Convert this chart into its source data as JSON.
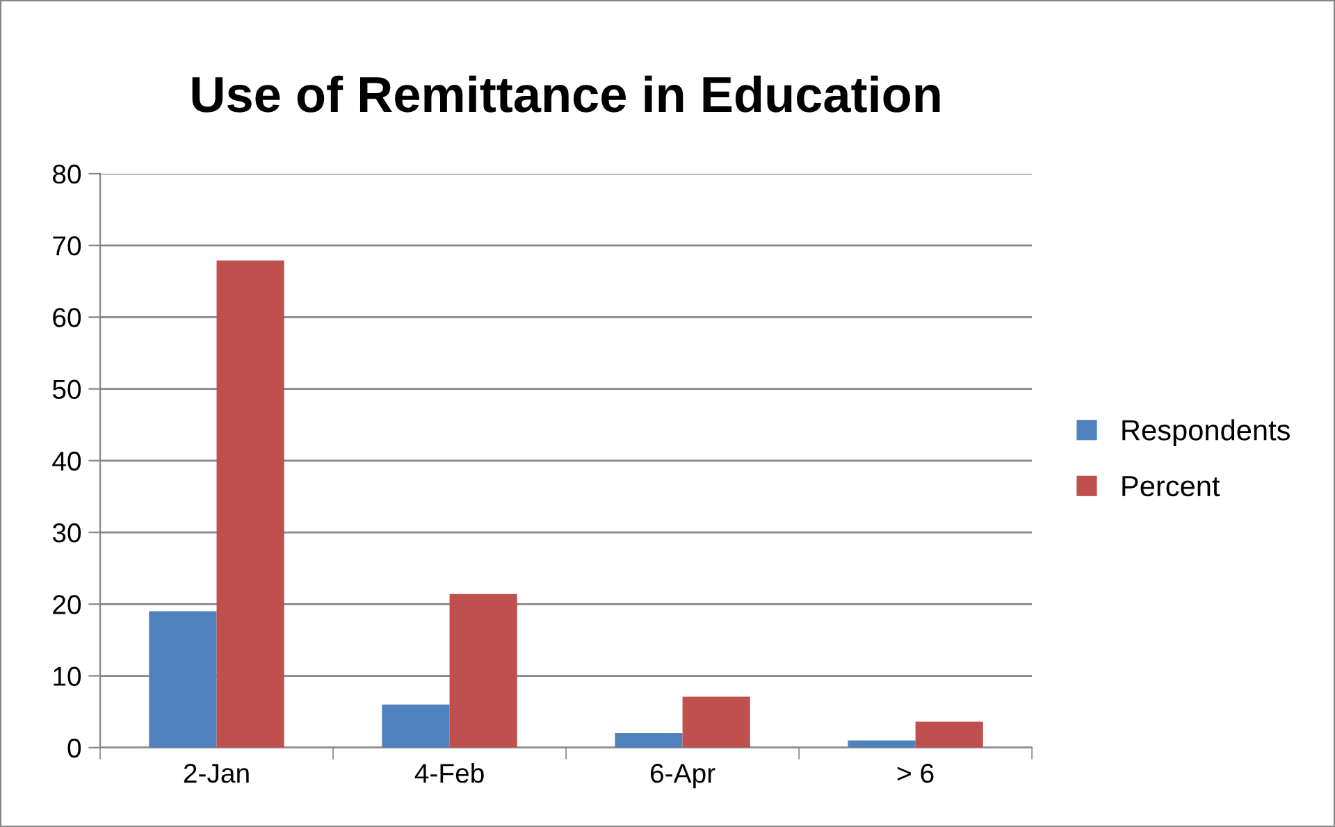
{
  "chart_data": {
    "type": "bar",
    "title": "Use of Remittance in Education",
    "categories": [
      "2-Jan",
      "4-Feb",
      "6-Apr",
      "> 6"
    ],
    "series": [
      {
        "name": "Respondents",
        "color": "#4f81bd",
        "values": [
          19,
          6,
          2,
          1
        ]
      },
      {
        "name": "Percent",
        "color": "#c0504d",
        "values": [
          67.9,
          21.4,
          7.1,
          3.6
        ]
      }
    ],
    "ylim": [
      0,
      80
    ],
    "yticks": [
      0,
      10,
      20,
      30,
      40,
      50,
      60,
      70,
      80
    ],
    "grid": "y",
    "legend": "right"
  }
}
